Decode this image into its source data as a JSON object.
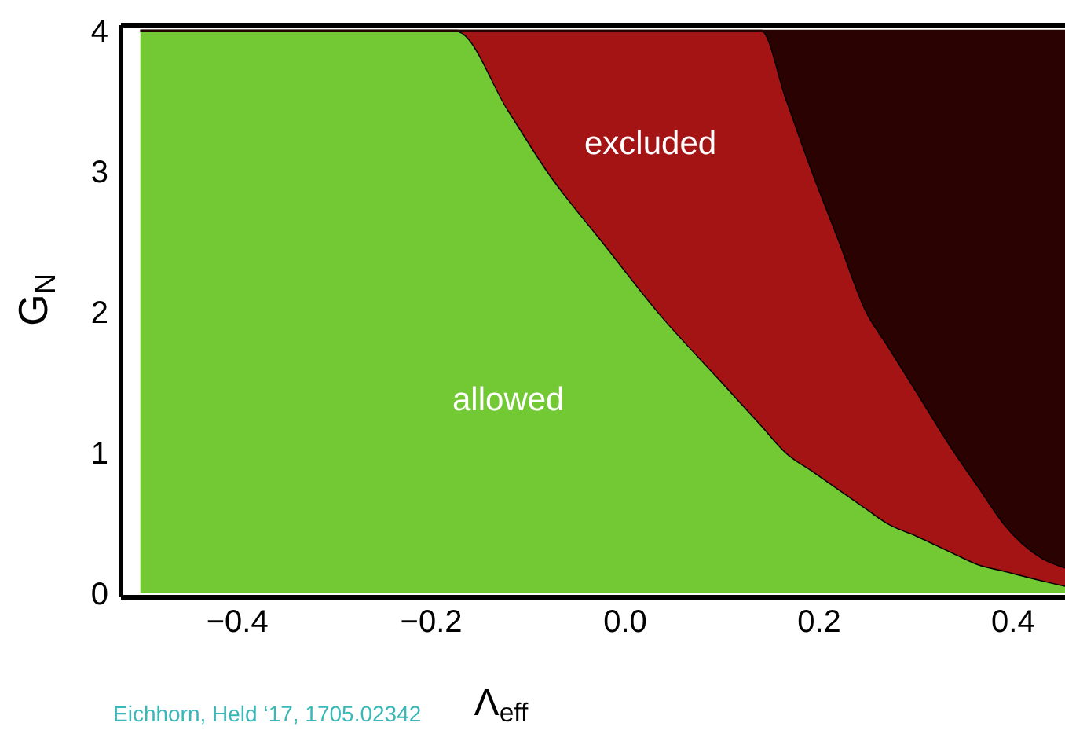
{
  "chart_data": {
    "type": "area",
    "stacked": true,
    "xlabel": "Λ$_{eff}$",
    "ylabel": "G$_{N}$",
    "x": [
      -0.5,
      -0.3,
      -0.174,
      -0.12,
      -0.08,
      -0.02,
      0.034,
      0.1,
      0.141,
      0.166,
      0.193,
      0.22,
      0.249,
      0.27,
      0.3,
      0.34,
      0.366,
      0.39,
      0.43,
      0.455
    ],
    "series": [
      {
        "color": "#72c934",
        "values": [
          4,
          4,
          4,
          3.43,
          3,
          2.47,
          2,
          1.5,
          1.19,
          1,
          0.87,
          0.74,
          0.6,
          0.5,
          0.41,
          0.28,
          0.2,
          0.16,
          0.09,
          0.05
        ]
      },
      {
        "color": "#a51414",
        "values": [
          0,
          0,
          0,
          0.57,
          1,
          1.53,
          2,
          2.5,
          2.81,
          2.52,
          2.13,
          1.78,
          1.4,
          1.27,
          1.03,
          0.72,
          0.54,
          0.34,
          0.16,
          0.13
        ]
      },
      {
        "color": "#2a0202",
        "values": [
          0,
          0,
          0,
          0,
          0,
          0,
          0,
          0,
          0,
          0.48,
          1,
          1.48,
          2,
          2.23,
          2.56,
          3,
          3.26,
          3.5,
          3.75,
          3.82
        ]
      }
    ],
    "xlim": [
      -0.52,
      0.46
    ],
    "ylim": [
      -0.03,
      4.04
    ],
    "xticks": [
      {
        "value": -0.4,
        "label": "−0.4"
      },
      {
        "value": -0.2,
        "label": "−0.2"
      },
      {
        "value": 0,
        "label": "0.0"
      },
      {
        "value": 0.2,
        "label": "0.2"
      },
      {
        "value": 0.4,
        "label": "0.4"
      }
    ],
    "yticks": [
      0,
      1,
      2,
      3,
      4
    ],
    "annotations": [
      "excluded",
      "allowed",
      "Eichhorn, Held ‘17, 1705.02342"
    ],
    "grid": false,
    "legend": false
  }
}
